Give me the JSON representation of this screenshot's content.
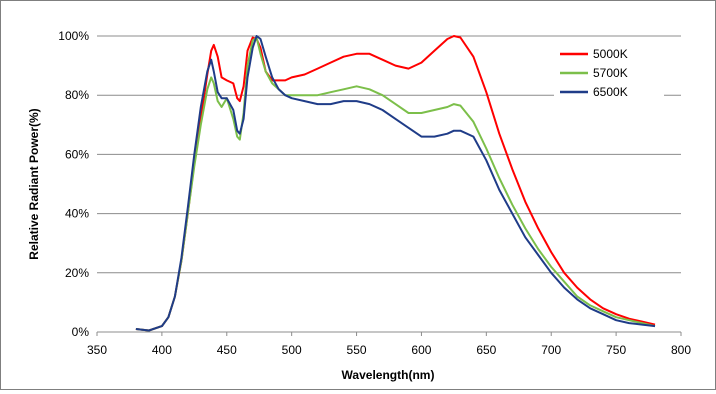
{
  "chart_data": {
    "type": "line",
    "xlabel": "Wavelength(nm)",
    "ylabel": "Relative Radiant Power(%)",
    "xlim": [
      350,
      800
    ],
    "ylim": [
      0,
      100
    ],
    "x_ticks": [
      "350",
      "400",
      "450",
      "500",
      "550",
      "600",
      "650",
      "700",
      "750",
      "800"
    ],
    "y_ticks": [
      "0%",
      "20%",
      "40%",
      "60%",
      "80%",
      "100%"
    ],
    "grid": "horizontal",
    "legend_position": "top-right",
    "series": [
      {
        "name": "5000K",
        "color": "#ff0000",
        "x": [
          380,
          390,
          400,
          405,
          410,
          415,
          420,
          425,
          430,
          435,
          438,
          440,
          443,
          446,
          450,
          455,
          458,
          460,
          463,
          466,
          470,
          473,
          476,
          480,
          485,
          490,
          495,
          500,
          510,
          520,
          530,
          540,
          550,
          560,
          570,
          580,
          590,
          600,
          610,
          620,
          625,
          630,
          640,
          650,
          660,
          670,
          680,
          690,
          700,
          710,
          720,
          730,
          740,
          750,
          760,
          770,
          780
        ],
        "y": [
          1,
          0.5,
          2,
          5,
          12,
          24,
          40,
          57,
          72,
          87,
          95,
          97,
          93,
          86,
          85,
          84,
          79,
          78,
          83,
          95,
          99.5,
          99,
          96,
          88,
          85,
          85,
          85,
          86,
          87,
          89,
          91,
          93,
          94,
          94,
          92,
          90,
          89,
          91,
          95,
          99,
          100,
          99.5,
          93,
          81,
          67,
          55,
          44,
          35,
          27,
          20,
          15,
          11,
          8,
          6,
          4.5,
          3.5,
          2.5
        ]
      },
      {
        "name": "5700K",
        "color": "#7cbf4a",
        "x": [
          380,
          390,
          400,
          405,
          410,
          415,
          420,
          425,
          430,
          435,
          438,
          440,
          443,
          446,
          450,
          455,
          458,
          460,
          463,
          466,
          470,
          473,
          476,
          480,
          485,
          490,
          495,
          500,
          510,
          520,
          530,
          540,
          550,
          560,
          570,
          580,
          590,
          600,
          610,
          620,
          625,
          630,
          640,
          650,
          660,
          670,
          680,
          690,
          700,
          710,
          720,
          730,
          740,
          750,
          760,
          770,
          780
        ],
        "y": [
          1,
          0.5,
          2,
          5,
          12,
          24,
          40,
          56,
          70,
          82,
          86,
          84,
          78,
          76,
          79,
          72,
          66,
          65,
          74,
          90,
          98.5,
          99.5,
          94,
          88,
          84,
          82,
          80,
          80,
          80,
          80,
          81,
          82,
          83,
          82,
          80,
          77,
          74,
          74,
          75,
          76,
          77,
          76.5,
          71,
          62,
          52,
          43,
          35,
          28,
          22,
          17,
          12,
          9,
          7,
          5,
          4,
          3,
          2
        ]
      },
      {
        "name": "6500K",
        "color": "#1f3c88",
        "x": [
          380,
          390,
          400,
          405,
          410,
          415,
          420,
          425,
          430,
          435,
          438,
          440,
          443,
          446,
          450,
          455,
          458,
          460,
          463,
          466,
          470,
          473,
          476,
          480,
          485,
          490,
          495,
          500,
          510,
          520,
          530,
          540,
          550,
          560,
          570,
          580,
          590,
          600,
          610,
          620,
          625,
          630,
          640,
          650,
          660,
          670,
          680,
          690,
          700,
          710,
          720,
          730,
          740,
          750,
          760,
          770,
          780
        ],
        "y": [
          1,
          0.5,
          2,
          5,
          12,
          25,
          42,
          60,
          76,
          88,
          92,
          88,
          81,
          79,
          79,
          75,
          68,
          67,
          72,
          86,
          96,
          100,
          99,
          93,
          86,
          82,
          80,
          79,
          78,
          77,
          77,
          78,
          78,
          77,
          75,
          72,
          69,
          66,
          66,
          67,
          68,
          68,
          66,
          58,
          48,
          40,
          32,
          26,
          20,
          15,
          11,
          8,
          6,
          4,
          3,
          2.5,
          2
        ]
      }
    ]
  }
}
